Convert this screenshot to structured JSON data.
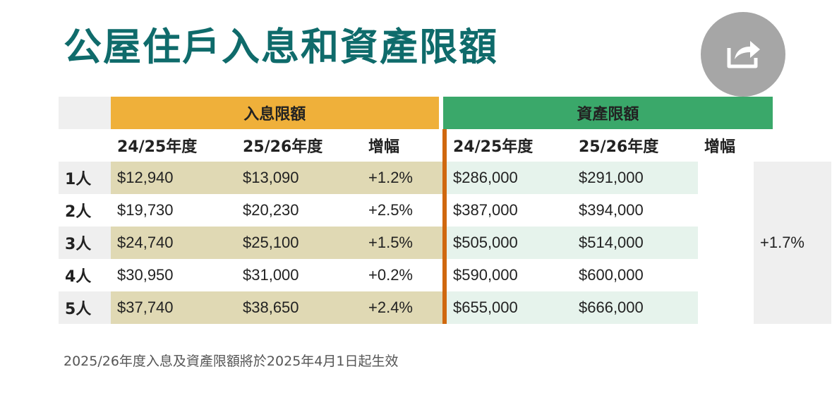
{
  "title": "公屋住戶入息和資產限額",
  "share_icon": "share-icon",
  "table": {
    "group_headers": {
      "income": "入息限額",
      "assets": "資產限額"
    },
    "column_headers": [
      "24/25年度",
      "25/26年度",
      "增幅",
      "24/25年度",
      "25/26年度",
      "增幅"
    ],
    "rows": [
      {
        "label": "1人",
        "inc_2425": "$12,940",
        "inc_2526": "$13,090",
        "inc_change": "+1.2%",
        "ast_2425": "$286,000",
        "ast_2526": "$291,000"
      },
      {
        "label": "2人",
        "inc_2425": "$19,730",
        "inc_2526": "$20,230",
        "inc_change": "+2.5%",
        "ast_2425": "$387,000",
        "ast_2526": "$394,000"
      },
      {
        "label": "3人",
        "inc_2425": "$24,740",
        "inc_2526": "$25,100",
        "inc_change": "+1.5%",
        "ast_2425": "$505,000",
        "ast_2526": "$514,000"
      },
      {
        "label": "4人",
        "inc_2425": "$30,950",
        "inc_2526": "$31,000",
        "inc_change": "+0.2%",
        "ast_2425": "$590,000",
        "ast_2526": "$600,000"
      },
      {
        "label": "5人",
        "inc_2425": "$37,740",
        "inc_2526": "$38,650",
        "inc_change": "+2.4%",
        "ast_2425": "$655,000",
        "ast_2526": "$666,000"
      }
    ],
    "asset_change": "+1.7%"
  },
  "footnote": "2025/26年度入息及資產限額將於2025年4月1日起生效",
  "colors": {
    "title": "#0f6b6b",
    "income_header": "#efb03a",
    "asset_header": "#3aa86a",
    "income_band": "#e0d9b4",
    "asset_band": "#e6f3ec",
    "separator": "#d0680f"
  }
}
